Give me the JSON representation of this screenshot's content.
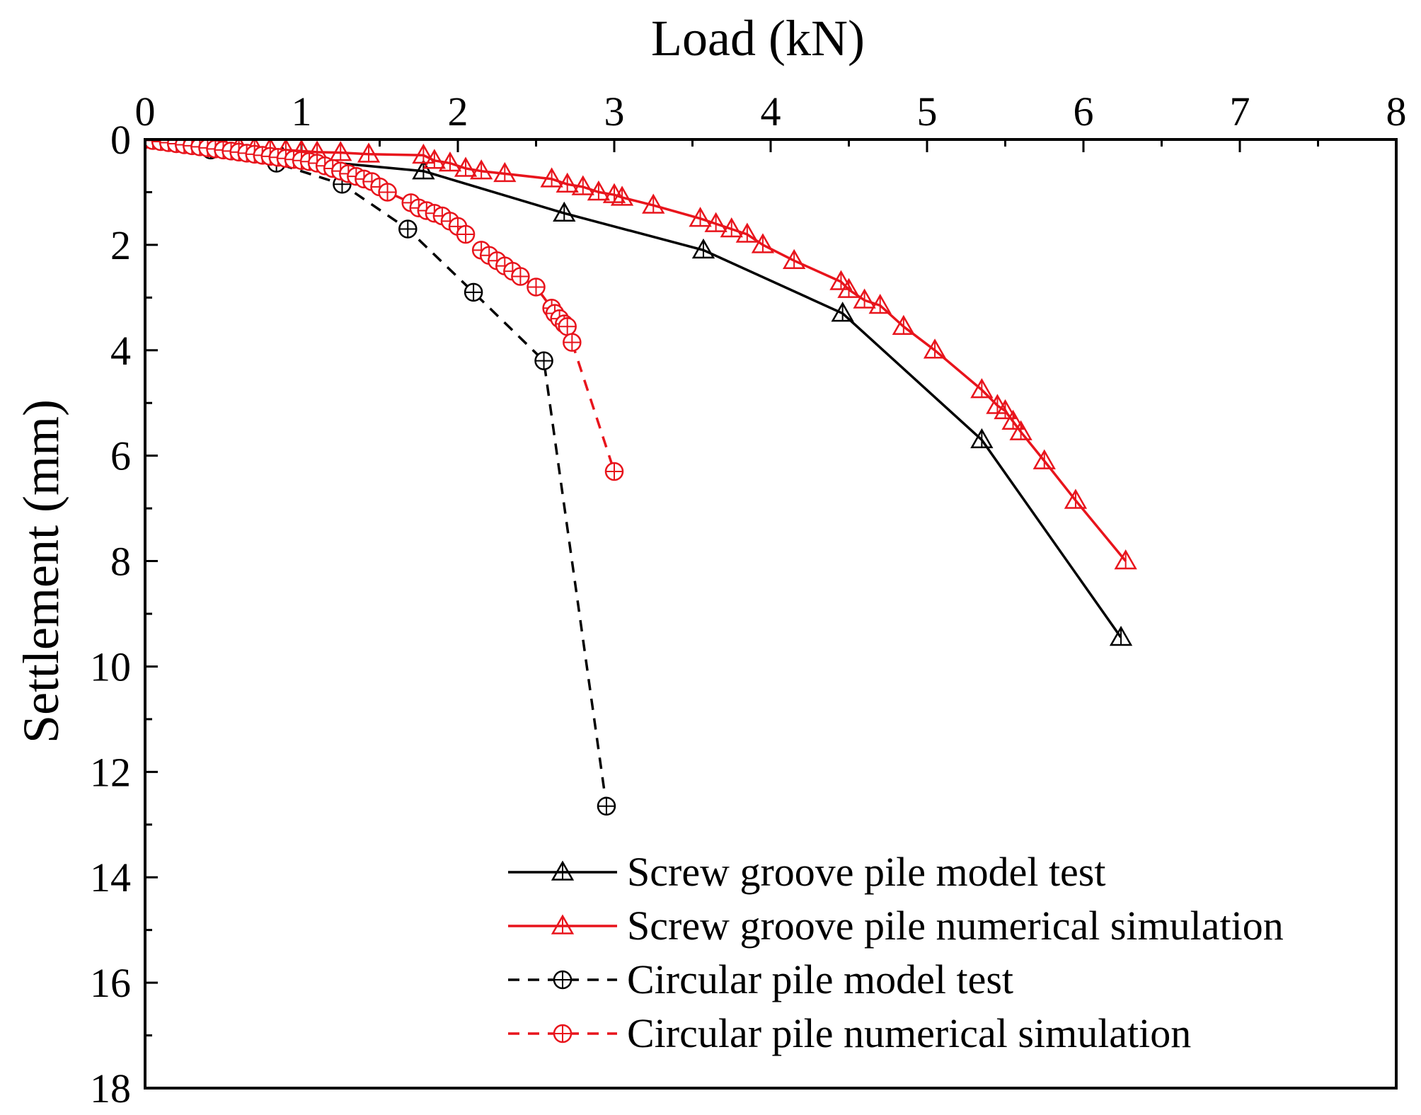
{
  "chart_data": {
    "type": "line",
    "title": "",
    "xlabel": "Load (kN)",
    "ylabel": "Settlement (mm)",
    "xlim": [
      0,
      8
    ],
    "ylim": [
      0,
      18
    ],
    "y_inverted": true,
    "x_axis_position": "top",
    "xticks": [
      0,
      1,
      2,
      3,
      4,
      5,
      6,
      7,
      8
    ],
    "yticks": [
      0,
      2,
      4,
      6,
      8,
      10,
      12,
      14,
      16,
      18
    ],
    "legend_position": "bottom-right",
    "colors": {
      "black": "#000000",
      "red": "#e8141c"
    },
    "series": [
      {
        "name": "Screw groove pile model test",
        "color": "#000000",
        "line": "solid",
        "marker": "triangle",
        "x": [
          0,
          0.45,
          0.88,
          1.78,
          2.68,
          3.57,
          4.46,
          5.35,
          6.24
        ],
        "y": [
          0,
          0.15,
          0.35,
          0.6,
          1.4,
          2.1,
          3.3,
          5.7,
          9.45
        ]
      },
      {
        "name": "Screw groove pile numerical simulation",
        "color": "#e8141c",
        "line": "solid",
        "marker": "triangle",
        "x": [
          0,
          0.1,
          0.2,
          0.3,
          0.4,
          0.5,
          0.6,
          0.7,
          0.8,
          0.9,
          1.0,
          1.1,
          1.25,
          1.43,
          1.78,
          1.85,
          1.95,
          2.05,
          2.15,
          2.3,
          2.6,
          2.7,
          2.8,
          2.9,
          3.0,
          3.05,
          3.25,
          3.55,
          3.65,
          3.75,
          3.85,
          3.95,
          4.15,
          4.45,
          4.5,
          4.6,
          4.7,
          4.85,
          5.05,
          5.35,
          5.45,
          5.5,
          5.55,
          5.6,
          5.75,
          5.95,
          6.27
        ],
        "y": [
          0,
          0.02,
          0.05,
          0.07,
          0.1,
          0.12,
          0.14,
          0.16,
          0.18,
          0.2,
          0.22,
          0.24,
          0.25,
          0.28,
          0.3,
          0.4,
          0.45,
          0.55,
          0.6,
          0.65,
          0.75,
          0.85,
          0.9,
          1.0,
          1.05,
          1.1,
          1.25,
          1.5,
          1.6,
          1.7,
          1.8,
          2.0,
          2.3,
          2.7,
          2.85,
          3.05,
          3.15,
          3.55,
          4.0,
          4.75,
          5.05,
          5.15,
          5.35,
          5.55,
          6.1,
          6.85,
          8.0
        ]
      },
      {
        "name": "Circular pile model test",
        "color": "#000000",
        "line": "dashed",
        "marker": "circle-plus",
        "x": [
          0,
          0.42,
          0.84,
          1.26,
          1.68,
          2.1,
          2.55,
          2.95
        ],
        "y": [
          0,
          0.2,
          0.45,
          0.85,
          1.7,
          2.9,
          4.2,
          12.65
        ]
      },
      {
        "name": "Circular pile numerical simulation",
        "color": "#e8141c",
        "line": "dashed",
        "marker": "circle-plus",
        "x": [
          0,
          0.05,
          0.1,
          0.15,
          0.2,
          0.25,
          0.3,
          0.35,
          0.4,
          0.45,
          0.5,
          0.55,
          0.6,
          0.65,
          0.7,
          0.75,
          0.8,
          0.85,
          0.9,
          0.95,
          1.0,
          1.05,
          1.1,
          1.15,
          1.2,
          1.25,
          1.3,
          1.35,
          1.4,
          1.45,
          1.5,
          1.55,
          1.7,
          1.75,
          1.8,
          1.85,
          1.9,
          1.95,
          2.0,
          2.05,
          2.15,
          2.2,
          2.25,
          2.3,
          2.35,
          2.4,
          2.5,
          2.6,
          2.62,
          2.65,
          2.68,
          2.7,
          2.73,
          3.0
        ],
        "y": [
          0,
          0.02,
          0.04,
          0.06,
          0.08,
          0.1,
          0.12,
          0.14,
          0.16,
          0.18,
          0.2,
          0.22,
          0.24,
          0.26,
          0.28,
          0.3,
          0.32,
          0.34,
          0.36,
          0.38,
          0.4,
          0.42,
          0.45,
          0.5,
          0.55,
          0.6,
          0.65,
          0.7,
          0.75,
          0.8,
          0.9,
          1.0,
          1.2,
          1.3,
          1.35,
          1.4,
          1.45,
          1.55,
          1.65,
          1.8,
          2.1,
          2.2,
          2.3,
          2.4,
          2.5,
          2.6,
          2.8,
          3.2,
          3.3,
          3.4,
          3.5,
          3.55,
          3.85,
          6.3
        ]
      }
    ]
  }
}
